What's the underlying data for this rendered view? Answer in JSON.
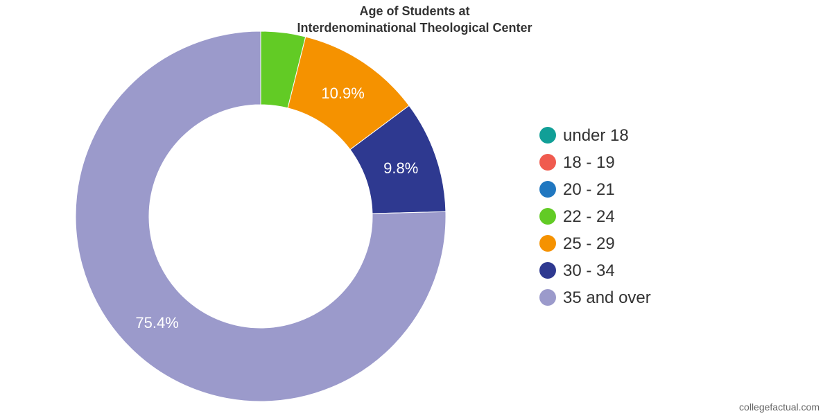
{
  "chart_data": {
    "type": "pie",
    "variant": "donut",
    "title": "Age of Students at",
    "subtitle": "Interdenominational Theological Center",
    "categories": [
      "under 18",
      "18 - 19",
      "20 - 21",
      "22 - 24",
      "25 - 29",
      "30 - 34",
      "35 and over"
    ],
    "values": [
      0.0,
      0.0,
      0.0,
      3.9,
      10.9,
      9.8,
      75.4
    ],
    "data_labels": [
      "",
      "",
      "",
      "",
      "10.9%",
      "9.8%",
      "75.4%"
    ],
    "colors": [
      "#119f97",
      "#f05b4f",
      "#2077c0",
      "#62cb25",
      "#f59200",
      "#2e3990",
      "#9b9acb"
    ],
    "legend_position": "right",
    "unit": "%"
  },
  "watermark": "collegefactual.com"
}
